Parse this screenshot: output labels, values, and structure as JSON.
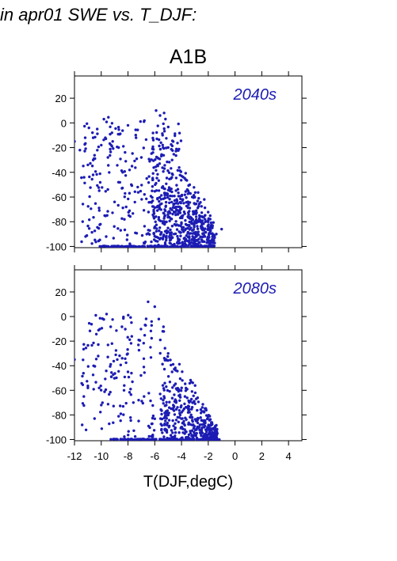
{
  "title": "in apr01 SWE vs. T_DJF:",
  "subtitle": "A1B",
  "colors": {
    "points": "#1c1cb4",
    "axes": "#000000",
    "panel_label": "#1c1cb4"
  },
  "chart_data": [
    {
      "type": "scatter",
      "panel_label": "2040s",
      "xlim": [
        -12,
        5
      ],
      "ylim": [
        -101,
        38
      ],
      "yticks": [
        "20",
        "0",
        "-20",
        "-40",
        "-60",
        "-80",
        "-100"
      ],
      "grid": false,
      "clusters": [
        {
          "name": "dense_band",
          "x_range": [
            -6.2,
            -1.5
          ],
          "y_range": [
            -100,
            10
          ],
          "count": 520,
          "trend": "slope"
        },
        {
          "name": "spread",
          "x_range": [
            -11.5,
            -4.0
          ],
          "y_range": [
            -98,
            5
          ],
          "count": 260
        },
        {
          "name": "floor",
          "x_range": [
            -10.2,
            -1.5
          ],
          "y_value": -100,
          "count": 140
        }
      ],
      "x": [
        -12,
        -11.6,
        -11.2,
        -11.0,
        -10.6,
        -10.3,
        -10.0,
        -9.8,
        -9.5,
        -9.2,
        -9.0,
        -8.7,
        -8.4,
        -8.0,
        -7.7,
        -7.4,
        -7.0,
        -6.6,
        -6.2,
        -5.9,
        -5.6,
        -5.3,
        -5.0,
        -4.7,
        -4.4,
        -4.1,
        -3.8,
        -3.5,
        -3.2,
        -2.9,
        -2.6,
        -2.3,
        -2.0,
        -1.7,
        -1.4,
        -1.0
      ],
      "y": [
        -15,
        -22,
        -12,
        -34,
        -30,
        -5,
        -18,
        3,
        -28,
        -8,
        -64,
        -20,
        -40,
        -2,
        -35,
        -12,
        -28,
        -45,
        -55,
        10,
        6,
        8,
        -20,
        -30,
        -65,
        -70,
        -72,
        -55,
        -60,
        -76,
        -80,
        -62,
        -80,
        -85,
        -90,
        -86
      ]
    },
    {
      "type": "scatter",
      "panel_label": "2080s",
      "xlim": [
        -12,
        5
      ],
      "ylim": [
        -101,
        38
      ],
      "yticks": [
        "20",
        "0",
        "-20",
        "-40",
        "-60",
        "-80",
        "-100"
      ],
      "xticks": [
        "-12",
        "-10",
        "-8",
        "-6",
        "-4",
        "-2",
        "0",
        "2",
        "4"
      ],
      "xlabel": "T(DJF,degC)",
      "grid": false,
      "clusters": [
        {
          "name": "dense_band",
          "x_range": [
            -5.6,
            -1.3
          ],
          "y_range": [
            -100,
            0
          ],
          "count": 380,
          "trend": "slope"
        },
        {
          "name": "spread",
          "x_range": [
            -11.5,
            -6.0
          ],
          "y_range": [
            -98,
            2
          ],
          "count": 150
        },
        {
          "name": "floor",
          "x_range": [
            -9.3,
            -1.0
          ],
          "y_value": -100,
          "count": 150
        }
      ],
      "x": [
        -12,
        -11.3,
        -11.0,
        -10.5,
        -10.0,
        -9.6,
        -9.2,
        -8.8,
        -8.3,
        -8.0,
        -7.6,
        -7.2,
        -6.8,
        -6.5,
        -6.0,
        -5.7,
        -5.4,
        -5.0,
        -4.7,
        -4.4,
        -4.1,
        -3.8,
        -3.5,
        -3.2,
        -2.9,
        -2.6,
        -2.3,
        -2.0,
        -1.7,
        -1.4
      ],
      "y": [
        -35,
        -65,
        -58,
        -83,
        -72,
        2,
        -22,
        -35,
        -60,
        -45,
        -70,
        -68,
        -65,
        12,
        8,
        -2,
        -12,
        -30,
        -45,
        -70,
        -80,
        -75,
        -78,
        -82,
        -85,
        -88,
        -90,
        -92,
        -94,
        -95
      ]
    }
  ]
}
